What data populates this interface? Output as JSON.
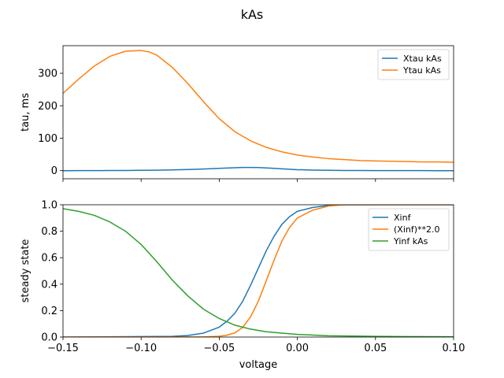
{
  "figure_title": "kAs",
  "chart_data": [
    {
      "type": "line",
      "ylabel": "tau, ms",
      "xlabel": "",
      "xlim": [
        -0.15,
        0.1
      ],
      "ylim": [
        -25,
        385
      ],
      "xticks": [
        -0.15,
        -0.1,
        -0.05,
        0.0,
        0.05,
        0.1
      ],
      "show_xtick_labels": false,
      "yticks": [
        0,
        100,
        200,
        300
      ],
      "ytick_labels": [
        "0",
        "100",
        "200",
        "300"
      ],
      "grid": false,
      "legend": "top-right",
      "series": [
        {
          "name": "Xtau kAs",
          "color": "#1f77b4",
          "x": [
            -0.15,
            -0.14,
            -0.13,
            -0.12,
            -0.11,
            -0.1,
            -0.09,
            -0.08,
            -0.07,
            -0.06,
            -0.05,
            -0.04,
            -0.035,
            -0.03,
            -0.025,
            -0.02,
            -0.015,
            -0.01,
            0.0,
            0.01,
            0.02,
            0.03,
            0.04,
            0.05,
            0.06,
            0.07,
            0.08,
            0.09,
            0.1
          ],
          "y": [
            0.0,
            0.1,
            0.2,
            0.4,
            0.6,
            1.0,
            1.5,
            2.3,
            3.5,
            5.0,
            7.0,
            9.0,
            9.8,
            10.0,
            9.6,
            8.5,
            7.0,
            5.5,
            3.0,
            1.7,
            1.0,
            0.6,
            0.4,
            0.3,
            0.2,
            0.1,
            0.1,
            0.0,
            0.0
          ]
        },
        {
          "name": "Ytau kAs",
          "color": "#ff7f0e",
          "x": [
            -0.15,
            -0.14,
            -0.13,
            -0.12,
            -0.11,
            -0.1,
            -0.095,
            -0.09,
            -0.08,
            -0.07,
            -0.06,
            -0.05,
            -0.04,
            -0.03,
            -0.02,
            -0.01,
            0.0,
            0.01,
            0.02,
            0.03,
            0.04,
            0.05,
            0.06,
            0.07,
            0.08,
            0.09,
            0.1
          ],
          "y": [
            238,
            282,
            322,
            352,
            368,
            370,
            366,
            356,
            318,
            268,
            212,
            160,
            120,
            92,
            72,
            58,
            48,
            42,
            37,
            34,
            31,
            30,
            29,
            28,
            27,
            27,
            26
          ]
        }
      ]
    },
    {
      "type": "line",
      "ylabel": "steady state",
      "xlabel": "voltage",
      "xlim": [
        -0.15,
        0.1
      ],
      "ylim": [
        0.0,
        1.0
      ],
      "xticks": [
        -0.15,
        -0.1,
        -0.05,
        0.0,
        0.05,
        0.1
      ],
      "xtick_labels": [
        "−0.15",
        "−0.10",
        "−0.05",
        "0.00",
        "0.05",
        "0.10"
      ],
      "show_xtick_labels": true,
      "yticks": [
        0.0,
        0.2,
        0.4,
        0.6,
        0.8,
        1.0
      ],
      "ytick_labels": [
        "0.0",
        "0.2",
        "0.4",
        "0.6",
        "0.8",
        "1.0"
      ],
      "grid": false,
      "legend": "top-right",
      "series": [
        {
          "name": "Xinf",
          "color": "#1f77b4",
          "x": [
            -0.15,
            -0.08,
            -0.07,
            -0.06,
            -0.05,
            -0.045,
            -0.04,
            -0.035,
            -0.03,
            -0.025,
            -0.02,
            -0.015,
            -0.01,
            -0.005,
            0.0,
            0.01,
            0.02,
            0.03,
            0.05,
            0.1
          ],
          "y": [
            0.0,
            0.005,
            0.012,
            0.03,
            0.075,
            0.12,
            0.18,
            0.27,
            0.39,
            0.52,
            0.65,
            0.76,
            0.85,
            0.91,
            0.95,
            0.98,
            0.995,
            1.0,
            1.0,
            1.0
          ]
        },
        {
          "name": "(Xinf)**2.0",
          "color": "#ff7f0e",
          "x": [
            -0.15,
            -0.06,
            -0.05,
            -0.045,
            -0.04,
            -0.035,
            -0.03,
            -0.025,
            -0.02,
            -0.015,
            -0.01,
            -0.005,
            0.0,
            0.01,
            0.02,
            0.03,
            0.05,
            0.1
          ],
          "y": [
            0.0,
            0.001,
            0.006,
            0.014,
            0.032,
            0.073,
            0.152,
            0.27,
            0.423,
            0.578,
            0.723,
            0.828,
            0.9,
            0.96,
            0.99,
            1.0,
            1.0,
            1.0
          ]
        },
        {
          "name": "Yinf kAs",
          "color": "#2ca02c",
          "x": [
            -0.15,
            -0.14,
            -0.13,
            -0.12,
            -0.11,
            -0.1,
            -0.09,
            -0.08,
            -0.07,
            -0.06,
            -0.05,
            -0.04,
            -0.03,
            -0.02,
            -0.01,
            0.0,
            0.02,
            0.05,
            0.1
          ],
          "y": [
            0.97,
            0.95,
            0.92,
            0.87,
            0.8,
            0.7,
            0.57,
            0.43,
            0.31,
            0.21,
            0.14,
            0.09,
            0.06,
            0.04,
            0.03,
            0.02,
            0.01,
            0.005,
            0.002
          ]
        }
      ]
    }
  ]
}
